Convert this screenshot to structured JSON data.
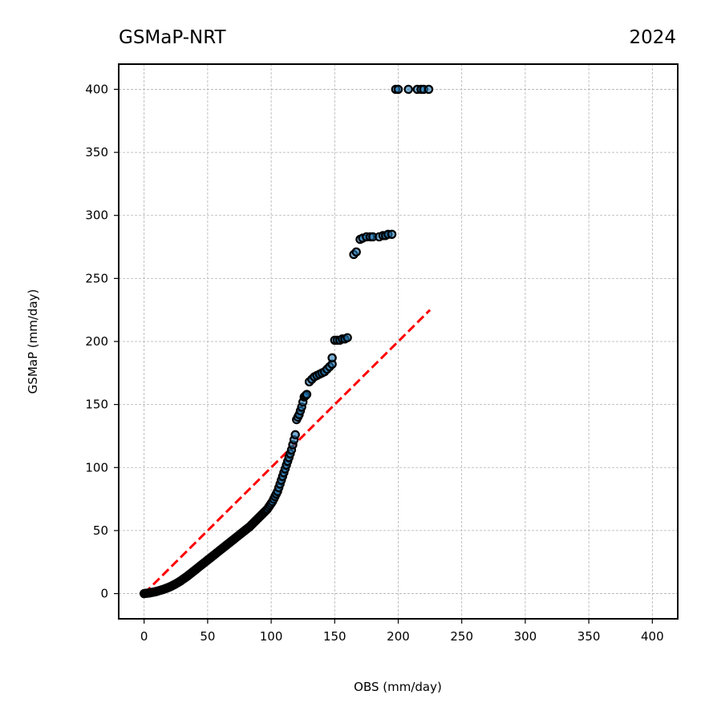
{
  "title_left": "GSMaP-NRT",
  "title_right": "2024",
  "colors": {
    "points": "#1f77b4",
    "edge": "#000000",
    "ref_line": "#ff0000",
    "grid": "#b0b0b0"
  },
  "chart_data": {
    "type": "scatter",
    "title": "GSMaP-NRT",
    "subtitle": "2024",
    "xlabel": "OBS (mm/day)",
    "ylabel": "GSMaP (mm/day)",
    "xlim": [
      -20,
      420
    ],
    "ylim": [
      -20,
      420
    ],
    "xticks": [
      0,
      50,
      100,
      150,
      200,
      250,
      300,
      350,
      400
    ],
    "yticks": [
      0,
      50,
      100,
      150,
      200,
      250,
      300,
      350,
      400
    ],
    "grid": true,
    "reference_line": {
      "x": [
        0,
        225
      ],
      "y": [
        0,
        225
      ],
      "style": "dashed"
    },
    "series": [
      {
        "points": [
          [
            0,
            0
          ],
          [
            1,
            0.2
          ],
          [
            2,
            0.3
          ],
          [
            3,
            0.4
          ],
          [
            4,
            0.5
          ],
          [
            5,
            0.7
          ],
          [
            6,
            0.9
          ],
          [
            7,
            1.1
          ],
          [
            8,
            1.3
          ],
          [
            9,
            1.5
          ],
          [
            10,
            1.8
          ],
          [
            11,
            2.1
          ],
          [
            12,
            2.4
          ],
          [
            13,
            2.7
          ],
          [
            14,
            3.0
          ],
          [
            15,
            3.3
          ],
          [
            16,
            3.6
          ],
          [
            17,
            4.0
          ],
          [
            18,
            4.4
          ],
          [
            19,
            4.8
          ],
          [
            20,
            5.2
          ],
          [
            21,
            5.7
          ],
          [
            22,
            6.2
          ],
          [
            23,
            6.7
          ],
          [
            24,
            7.2
          ],
          [
            25,
            7.8
          ],
          [
            26,
            8.4
          ],
          [
            27,
            9.0
          ],
          [
            28,
            9.6
          ],
          [
            29,
            10.2
          ],
          [
            30,
            11
          ],
          [
            31,
            11.7
          ],
          [
            32,
            12.4
          ],
          [
            33,
            13.1
          ],
          [
            34,
            13.8
          ],
          [
            35,
            14.6
          ],
          [
            36,
            15.4
          ],
          [
            37,
            16.2
          ],
          [
            38,
            17
          ],
          [
            39,
            17.8
          ],
          [
            40,
            18.6
          ],
          [
            41,
            19.4
          ],
          [
            42,
            20.2
          ],
          [
            43,
            21
          ],
          [
            44,
            21.8
          ],
          [
            45,
            22.6
          ],
          [
            46,
            23.4
          ],
          [
            47,
            24.2
          ],
          [
            48,
            25
          ],
          [
            49,
            25.8
          ],
          [
            50,
            26.6
          ],
          [
            51,
            27.4
          ],
          [
            52,
            28.2
          ],
          [
            53,
            29
          ],
          [
            54,
            29.8
          ],
          [
            55,
            30.6
          ],
          [
            56,
            31.4
          ],
          [
            57,
            32.2
          ],
          [
            58,
            33
          ],
          [
            59,
            33.8
          ],
          [
            60,
            34.6
          ],
          [
            61,
            35.4
          ],
          [
            62,
            36.2
          ],
          [
            63,
            37
          ],
          [
            64,
            37.8
          ],
          [
            65,
            38.6
          ],
          [
            66,
            39.4
          ],
          [
            67,
            40.2
          ],
          [
            68,
            41
          ],
          [
            69,
            41.8
          ],
          [
            70,
            42.6
          ],
          [
            71,
            43.4
          ],
          [
            72,
            44.2
          ],
          [
            73,
            45
          ],
          [
            74,
            45.8
          ],
          [
            75,
            46.6
          ],
          [
            76,
            47.4
          ],
          [
            77,
            48.2
          ],
          [
            78,
            49
          ],
          [
            79,
            49.8
          ],
          [
            80,
            50.6
          ],
          [
            81,
            51.4
          ],
          [
            82,
            52.2
          ],
          [
            83,
            53
          ],
          [
            84,
            54
          ],
          [
            85,
            55
          ],
          [
            86,
            56
          ],
          [
            87,
            57
          ],
          [
            88,
            58
          ],
          [
            89,
            59
          ],
          [
            90,
            60
          ],
          [
            91,
            61
          ],
          [
            92,
            62
          ],
          [
            93,
            63
          ],
          [
            94,
            64
          ],
          [
            95,
            65
          ],
          [
            96,
            66
          ],
          [
            97,
            67
          ],
          [
            98,
            68.5
          ],
          [
            99,
            70
          ],
          [
            100,
            71.5
          ],
          [
            101,
            73
          ],
          [
            102,
            75
          ],
          [
            103,
            77
          ],
          [
            104,
            79
          ],
          [
            105,
            81
          ],
          [
            106,
            84
          ],
          [
            107,
            87
          ],
          [
            108,
            90
          ],
          [
            109,
            93
          ],
          [
            110,
            96
          ],
          [
            111,
            99
          ],
          [
            112,
            102
          ],
          [
            113,
            105
          ],
          [
            114,
            108
          ],
          [
            115,
            111
          ],
          [
            116,
            114
          ],
          [
            117,
            118
          ],
          [
            118,
            122
          ],
          [
            119,
            126
          ],
          [
            120,
            138
          ],
          [
            121,
            140
          ],
          [
            122,
            142
          ],
          [
            123,
            145
          ],
          [
            124,
            148
          ],
          [
            125,
            152
          ],
          [
            126,
            156
          ],
          [
            127,
            157
          ],
          [
            128,
            158
          ],
          [
            130,
            168
          ],
          [
            132,
            170
          ],
          [
            134,
            172
          ],
          [
            136,
            173
          ],
          [
            138,
            174
          ],
          [
            140,
            175
          ],
          [
            142,
            176
          ],
          [
            144,
            178
          ],
          [
            146,
            180
          ],
          [
            148,
            182
          ],
          [
            148,
            187
          ],
          [
            150,
            201
          ],
          [
            152,
            201
          ],
          [
            154,
            201
          ],
          [
            156,
            202
          ],
          [
            158,
            202
          ],
          [
            160,
            203
          ],
          [
            165,
            269
          ],
          [
            167,
            271
          ],
          [
            170,
            281
          ],
          [
            172,
            282
          ],
          [
            175,
            283
          ],
          [
            178,
            283
          ],
          [
            180,
            283
          ],
          [
            185,
            283
          ],
          [
            188,
            284
          ],
          [
            190,
            284
          ],
          [
            192,
            285
          ],
          [
            195,
            285
          ],
          [
            198,
            400
          ],
          [
            200,
            400
          ],
          [
            208,
            400
          ],
          [
            215,
            400
          ],
          [
            218,
            400
          ],
          [
            220,
            400
          ],
          [
            224,
            400
          ]
        ]
      }
    ]
  }
}
